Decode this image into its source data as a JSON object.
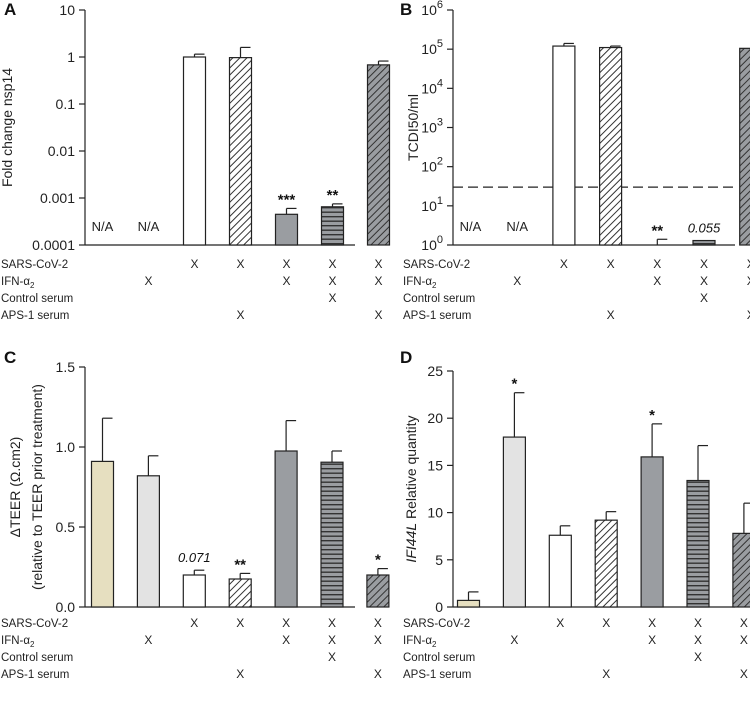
{
  "colors": {
    "beige": "#e6dfc0",
    "light_gray": "#e3e3e3",
    "white": "#ffffff",
    "dark_gray": "#9a9da1",
    "stroke": "#222222"
  },
  "treatment_rows": [
    "SARS-CoV-2",
    "IFN-α",
    "Control serum",
    "APS-1 serum"
  ],
  "ifn_subscript": "2",
  "x_mark": "X",
  "condition_matrix": [
    [
      false,
      false,
      false,
      false
    ],
    [
      false,
      true,
      false,
      false
    ],
    [
      true,
      false,
      false,
      false
    ],
    [
      true,
      false,
      false,
      true
    ],
    [
      true,
      true,
      false,
      false
    ],
    [
      true,
      true,
      true,
      false
    ],
    [
      true,
      true,
      false,
      true
    ]
  ],
  "chart_data": [
    {
      "panel": "A",
      "type": "bar",
      "yscale": "log",
      "ylabel": "Fold change nsp14",
      "ylim": [
        0.0001,
        10
      ],
      "ytick_values": [
        0.0001,
        0.001,
        0.01,
        0.1,
        1,
        10
      ],
      "ytick_labels": [
        "0.0001",
        "0.001",
        "0.01",
        "0.1",
        "1",
        "10"
      ],
      "values": [
        null,
        null,
        1.0,
        0.97,
        0.00045,
        0.00065,
        0.68
      ],
      "errors_upper": [
        null,
        null,
        1.15,
        1.6,
        0.0006,
        0.00075,
        0.82
      ],
      "fills": [
        "none",
        "none",
        "white",
        "diag",
        "dark",
        "hstripe",
        "darkdiag"
      ],
      "labels": [
        "N/A",
        "N/A",
        "",
        "",
        "***",
        "**",
        ""
      ],
      "label_styles": [
        "na",
        "na",
        "",
        "",
        "sig",
        "sig",
        ""
      ]
    },
    {
      "panel": "B",
      "type": "bar",
      "yscale": "log",
      "ylabel": "TCDI50/ml",
      "ylim": [
        1,
        1000000
      ],
      "ytick_values": [
        1,
        10,
        100,
        1000,
        10000,
        100000,
        1000000
      ],
      "ytick_base": "10",
      "ytick_exponents": [
        "0",
        "1",
        "2",
        "3",
        "4",
        "5",
        "6"
      ],
      "detection_limit": 30,
      "values": [
        null,
        null,
        120000,
        110000,
        null,
        1.3,
        105000
      ],
      "errors_upper": [
        null,
        null,
        140000,
        120000,
        1.4,
        null,
        160000
      ],
      "fills": [
        "none",
        "none",
        "white",
        "diag",
        "dark",
        "hstripe",
        "darkdiag"
      ],
      "labels": [
        "N/A",
        "N/A",
        "",
        "",
        "**",
        "0.055",
        ""
      ],
      "label_styles": [
        "na",
        "na",
        "",
        "",
        "sig",
        "sig-it",
        ""
      ]
    },
    {
      "panel": "C",
      "type": "bar",
      "yscale": "linear",
      "ylabel": "ΔTEER (Ω.cm2)",
      "ylabel2": "(relative to TEER prior treatment)",
      "ylim": [
        0,
        1.5
      ],
      "ytick_values": [
        0,
        0.5,
        1.0,
        1.5
      ],
      "ytick_labels": [
        "0.0",
        "0.5",
        "1.0",
        "1.5"
      ],
      "values": [
        0.91,
        0.82,
        0.2,
        0.175,
        0.975,
        0.905,
        0.2
      ],
      "errors_upper": [
        1.18,
        0.945,
        0.23,
        0.21,
        1.165,
        0.975,
        0.24
      ],
      "fills": [
        "beige",
        "lightgray",
        "white",
        "diag",
        "dark",
        "hstripe",
        "darkdiag"
      ],
      "labels": [
        "",
        "",
        "0.071",
        "**",
        "",
        "",
        "*"
      ],
      "label_styles": [
        "",
        "",
        "sig-it",
        "sig",
        "",
        "",
        "sig"
      ]
    },
    {
      "panel": "D",
      "type": "bar",
      "yscale": "linear",
      "ylabel_italic": "IFI44L",
      "ylabel_rest": " Relative quantity",
      "ylim": [
        0,
        25
      ],
      "ytick_values": [
        0,
        5,
        10,
        15,
        20,
        25
      ],
      "ytick_labels": [
        "0",
        "5",
        "10",
        "15",
        "20",
        "25"
      ],
      "values": [
        0.7,
        18.0,
        7.6,
        9.2,
        15.9,
        13.4,
        7.8
      ],
      "errors_upper": [
        1.6,
        22.7,
        8.6,
        10.1,
        19.4,
        17.1,
        11.0
      ],
      "fills": [
        "beige",
        "lightgray",
        "white",
        "diag",
        "dark",
        "hstripe",
        "darkdiag"
      ],
      "labels": [
        "",
        "*",
        "",
        "",
        "*",
        "",
        ""
      ],
      "label_styles": [
        "",
        "sig",
        "",
        "",
        "sig",
        "",
        ""
      ]
    }
  ]
}
